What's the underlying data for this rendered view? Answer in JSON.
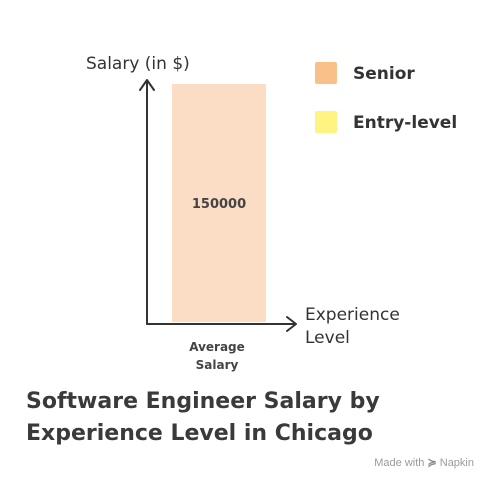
{
  "chart_data": {
    "type": "bar",
    "title": "Software Engineer Salary by Experience Level in Chicago",
    "ylabel": "Salary (in $)",
    "xlabel": "Experience Level",
    "categories": [
      "Average Salary"
    ],
    "series": [
      {
        "name": "Senior",
        "values": [
          150000
        ],
        "color": "#fbdcc4"
      },
      {
        "name": "Entry-level",
        "values": [
          0
        ],
        "color": "#fff59d"
      }
    ],
    "ylim": [
      0,
      150000
    ],
    "legend": [
      {
        "label": "Senior",
        "color": "#f9c08a"
      },
      {
        "label": "Entry-level",
        "color": "#fff382"
      }
    ],
    "legend_position": "top-right",
    "grid": false
  },
  "watermark": {
    "prefix": "Made with",
    "brand": "Napkin",
    "icon": "napkin-logo-icon"
  }
}
